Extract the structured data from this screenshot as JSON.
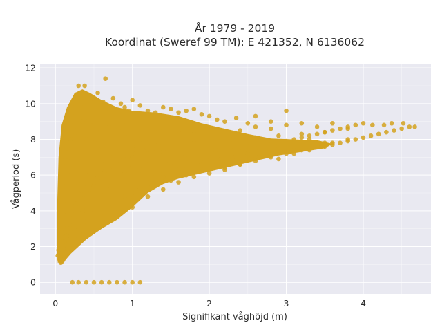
{
  "chart_data": {
    "type": "scatter",
    "title": "År 1979 - 2019",
    "subtitle": "Koordinat (Sweref 99 TM): E 421352, N 6136062",
    "xlabel": "Signifikant våghöjd (m)",
    "ylabel": "Vågperiod (s)",
    "xlim": [
      -0.2,
      4.88
    ],
    "ylim": [
      -0.65,
      12.2
    ],
    "xticks": [
      "0",
      "1",
      "2",
      "3",
      "4"
    ],
    "yticks": [
      "0",
      "2",
      "4",
      "6",
      "8",
      "10",
      "12"
    ],
    "grid": true,
    "color": "#d4a21e",
    "background": "#e9e9f1",
    "series": [
      {
        "x": [
          0.05,
          0.06,
          0.07,
          0.08,
          0.1,
          0.12,
          0.03,
          0.04,
          0.06,
          0.08,
          0.1,
          0.12,
          0.15,
          0.18,
          0.2,
          0.08,
          0.1,
          0.12,
          0.15,
          0.18,
          0.2,
          0.22,
          0.25,
          0.3,
          0.1,
          0.12,
          0.15,
          0.2,
          0.25,
          0.3,
          0.35,
          0.4,
          0.12,
          0.15,
          0.2,
          0.25,
          0.3,
          0.35,
          0.4,
          0.5,
          0.15,
          0.2,
          0.25,
          0.3,
          0.35,
          0.4,
          0.45,
          0.5,
          0.6,
          0.2,
          0.25,
          0.3,
          0.35,
          0.4,
          0.45,
          0.5,
          0.55,
          0.6,
          0.7,
          0.25,
          0.3,
          0.35,
          0.4,
          0.5,
          0.6,
          0.7,
          0.8,
          0.9,
          1.0,
          0.35,
          0.4,
          0.5,
          0.6,
          0.7,
          0.8,
          0.9,
          1.0,
          1.1,
          1.2,
          0.5,
          0.6,
          0.7,
          0.8,
          0.9,
          1.0,
          1.1,
          1.2,
          1.3,
          1.4,
          1.5,
          1.0,
          1.1,
          1.2,
          1.3,
          1.4,
          1.5,
          1.6,
          1.7,
          1.8,
          1.9,
          2.0,
          1.5,
          1.7,
          1.9,
          2.0,
          2.1,
          2.2,
          2.3,
          2.4,
          2.5,
          2.6,
          2.7,
          2.2,
          2.4,
          2.6,
          2.8,
          3.0,
          3.1,
          3.2,
          3.3,
          3.4,
          3.5,
          2.9,
          3.1,
          3.3,
          3.5,
          3.6,
          3.7,
          3.8,
          3.9,
          4.0,
          4.1,
          4.2,
          4.3,
          4.4,
          4.5,
          4.6,
          4.67,
          4.52,
          4.37,
          4.27,
          4.12,
          0.2,
          0.22,
          0.25,
          0.27,
          0.3,
          0.33,
          0.36,
          0.38,
          0.4,
          0.45,
          0.5,
          0.55,
          0.6,
          0.62,
          0.65,
          0.7,
          0.75,
          0.8,
          0.85,
          0.9,
          0.95,
          1.0,
          1.05,
          1.1,
          1.2,
          1.3,
          1.4,
          1.5,
          1.6,
          1.7,
          1.8,
          1.9,
          2.0,
          2.1,
          2.2,
          2.35,
          2.5,
          2.6,
          2.8,
          3.0,
          0.22,
          0.3,
          0.4,
          0.5,
          0.6,
          0.7,
          0.8,
          0.9,
          1.0,
          1.1,
          0.15,
          0.2,
          0.25,
          0.3,
          0.35,
          0.4,
          0.5,
          0.6,
          0.7,
          0.8,
          0.9,
          1.0,
          1.1,
          1.2,
          1.3,
          1.4,
          1.5,
          1.6,
          1.8,
          2.0,
          2.2,
          2.4,
          2.6,
          2.8,
          3.0,
          3.2,
          3.4,
          3.6,
          0.1,
          0.12,
          0.15,
          0.18,
          0.2,
          0.25,
          0.3,
          0.4,
          0.5,
          0.6,
          0.7,
          0.8,
          0.9,
          1.0,
          1.2,
          1.4,
          1.6,
          1.8,
          2.0,
          2.3,
          2.6,
          2.9,
          3.2,
          3.5,
          3.8,
          0.3,
          0.4,
          0.5,
          0.6,
          0.7,
          0.8,
          0.9,
          1.0,
          1.1,
          1.2,
          1.3,
          1.4,
          1.5,
          1.6,
          1.7,
          1.8,
          1.9,
          2.0,
          2.1,
          2.2,
          2.3,
          2.4,
          2.5,
          2.6,
          2.7,
          2.8,
          2.9,
          3.0,
          3.1,
          3.2,
          3.3,
          3.4,
          3.5,
          3.6,
          3.7,
          3.8,
          3.9,
          4.0,
          1.0,
          1.2,
          1.4,
          1.6,
          1.8,
          2.0,
          2.2,
          2.4,
          2.6,
          2.8,
          3.0,
          3.2,
          3.4,
          3.6,
          3.8,
          0.4,
          0.5,
          0.6,
          0.7,
          0.8,
          0.9,
          1.0,
          1.1,
          1.2,
          1.3,
          1.4,
          1.5,
          1.7,
          1.9,
          2.1,
          2.3,
          2.5,
          2.7,
          2.9,
          3.1,
          3.3,
          0.28,
          0.48,
          0.68,
          0.88,
          1.08,
          1.28,
          1.48,
          1.68,
          1.88,
          2.08,
          2.28,
          2.48,
          0.18,
          0.26,
          0.34,
          0.44,
          0.54,
          0.64,
          0.74,
          0.84,
          0.94,
          1.04,
          1.14,
          1.24,
          1.34,
          0.16,
          0.24,
          0.32,
          0.42,
          0.52,
          0.62,
          0.72,
          0.82,
          0.92,
          0.08,
          0.1,
          0.12,
          0.14,
          0.16,
          0.18,
          0.22,
          0.26,
          0.32,
          0.38,
          0.46,
          0.54
        ],
        "y": [
          1.3,
          1.2,
          1.1,
          1.15,
          1.25,
          1.4,
          1.5,
          1.8,
          2.0,
          2.2,
          2.5,
          2.8,
          3.0,
          3.2,
          3.4,
          1.5,
          1.9,
          2.3,
          2.6,
          3.0,
          3.5,
          3.8,
          4.1,
          4.5,
          1.8,
          2.5,
          3.2,
          3.8,
          4.4,
          5.0,
          5.5,
          5.9,
          1.6,
          2.4,
          3.0,
          3.5,
          4.2,
          4.8,
          5.3,
          6.0,
          2.1,
          2.6,
          3.1,
          3.6,
          4.1,
          4.7,
          5.2,
          5.6,
          6.2,
          2.2,
          2.7,
          3.3,
          3.9,
          4.5,
          5.0,
          5.4,
          5.8,
          6.1,
          6.4,
          2.6,
          3.0,
          3.5,
          4.0,
          4.6,
          5.1,
          5.6,
          6.0,
          6.2,
          6.5,
          2.9,
          3.3,
          3.9,
          4.3,
          4.8,
          5.2,
          5.6,
          5.9,
          6.3,
          6.6,
          3.1,
          3.5,
          3.8,
          4.1,
          4.5,
          4.9,
          5.3,
          5.6,
          5.9,
          6.2,
          6.5,
          4.6,
          5.0,
          5.3,
          5.6,
          5.9,
          6.1,
          6.3,
          6.5,
          6.7,
          6.9,
          7.0,
          5.7,
          6.0,
          6.3,
          6.4,
          6.6,
          6.8,
          6.9,
          7.0,
          7.1,
          7.2,
          7.3,
          6.3,
          6.6,
          6.9,
          7.1,
          7.3,
          7.4,
          7.5,
          7.6,
          7.7,
          7.8,
          6.9,
          7.2,
          7.4,
          7.6,
          7.7,
          7.8,
          7.9,
          8.0,
          8.1,
          8.2,
          8.3,
          8.4,
          8.5,
          8.6,
          8.7,
          8.7,
          8.9,
          8.9,
          8.8,
          8.8,
          9.0,
          9.5,
          10.0,
          10.5,
          11.0,
          9.8,
          10.4,
          11.0,
          9.6,
          10.2,
          9.9,
          10.6,
          9.4,
          10.1,
          11.4,
          9.7,
          10.3,
          9.5,
          10.0,
          9.8,
          9.6,
          10.2,
          9.3,
          9.9,
          9.6,
          9.5,
          9.8,
          9.7,
          9.5,
          9.6,
          9.7,
          9.4,
          9.3,
          9.1,
          9.0,
          9.2,
          8.9,
          9.3,
          9.0,
          9.6,
          0.0,
          0.0,
          0.0,
          0.0,
          0.0,
          0.0,
          0.0,
          0.0,
          0.0,
          0.0,
          7.5,
          8.0,
          8.5,
          8.8,
          9.0,
          9.2,
          8.9,
          9.1,
          8.7,
          8.5,
          8.3,
          8.1,
          8.0,
          8.2,
          8.4,
          8.6,
          8.8,
          8.5,
          8.3,
          8.6,
          8.4,
          8.5,
          8.7,
          8.6,
          8.8,
          8.9,
          8.7,
          8.9,
          6.5,
          7.0,
          7.5,
          7.8,
          8.0,
          8.2,
          8.4,
          8.0,
          7.8,
          7.6,
          7.4,
          7.2,
          7.1,
          7.0,
          7.2,
          7.4,
          7.6,
          7.8,
          7.9,
          8.0,
          8.1,
          8.2,
          8.3,
          8.4,
          8.6,
          5.5,
          6.0,
          6.4,
          6.8,
          7.1,
          7.3,
          7.5,
          7.6,
          7.7,
          7.8,
          7.5,
          7.3,
          7.1,
          7.0,
          6.9,
          6.8,
          6.7,
          6.8,
          7.0,
          7.1,
          7.2,
          7.3,
          7.4,
          7.5,
          7.6,
          7.7,
          7.8,
          7.9,
          8.0,
          8.1,
          8.2,
          8.3,
          8.4,
          8.5,
          8.6,
          8.7,
          8.8,
          8.9,
          4.2,
          4.8,
          5.2,
          5.6,
          5.9,
          6.1,
          6.4,
          6.6,
          6.8,
          7.0,
          7.2,
          7.4,
          7.6,
          7.8,
          8.0,
          3.4,
          3.6,
          3.9,
          4.2,
          4.5,
          4.8,
          5.0,
          5.3,
          5.5,
          5.7,
          5.9,
          6.0,
          6.3,
          6.6,
          6.8,
          7.0,
          7.2,
          7.4,
          7.6,
          7.8,
          8.0,
          4.4,
          5.0,
          5.4,
          5.8,
          6.2,
          6.5,
          6.8,
          7.0,
          7.2,
          7.4,
          7.6,
          7.8,
          3.7,
          4.3,
          4.9,
          5.4,
          5.8,
          6.2,
          6.5,
          6.8,
          7.0,
          7.2,
          7.4,
          7.6,
          7.8,
          6.8,
          7.2,
          7.6,
          7.8,
          8.0,
          8.2,
          8.4,
          8.6,
          8.8,
          3.0,
          3.8,
          4.6,
          5.4,
          6.2,
          7.0,
          7.8,
          8.4,
          8.8,
          9.2,
          9.0,
          8.6
        ]
      }
    ]
  }
}
